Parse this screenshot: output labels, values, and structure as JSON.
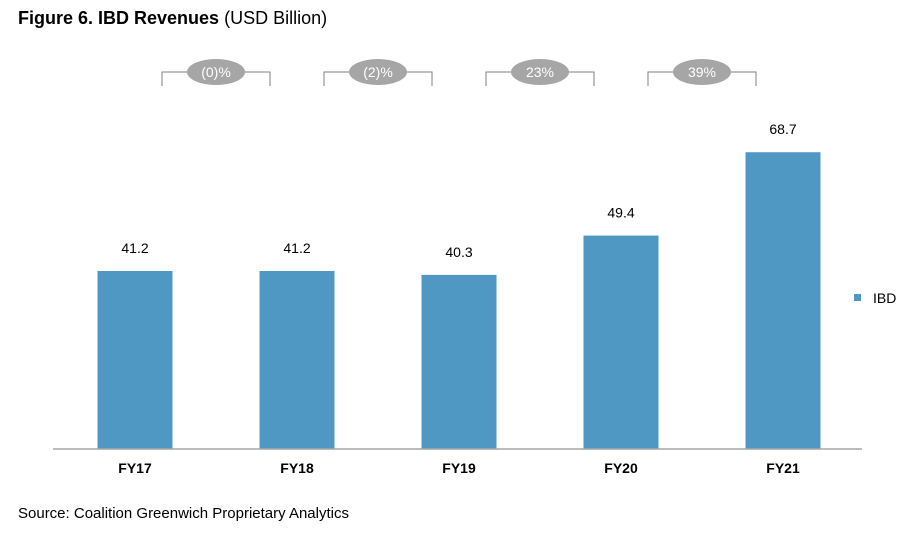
{
  "title": {
    "bold": "Figure 6. IBD Revenues",
    "normal": "(USD Billion)"
  },
  "source": "Source: Coalition Greenwich Proprietary Analytics",
  "colors": {
    "bar": "#4f98c3",
    "bubble": "#a6a6a6",
    "axis": "#a6a6a6",
    "bracket": "#808080"
  },
  "chart_data": {
    "type": "bar",
    "categories": [
      "FY17",
      "FY18",
      "FY19",
      "FY20",
      "FY21"
    ],
    "series": [
      {
        "name": "IBD",
        "values": [
          41.2,
          41.2,
          40.3,
          49.4,
          68.7
        ]
      }
    ],
    "value_labels": [
      "41.2",
      "41.2",
      "40.3",
      "49.4",
      "68.7"
    ],
    "growth_labels": [
      "(0)%",
      "(2)%",
      "23%",
      "39%"
    ],
    "legend": {
      "label": "IBD",
      "position": "right"
    },
    "ylim": [
      0,
      80
    ],
    "grid": false,
    "title": "Figure 6. IBD Revenues (USD Billion)"
  }
}
